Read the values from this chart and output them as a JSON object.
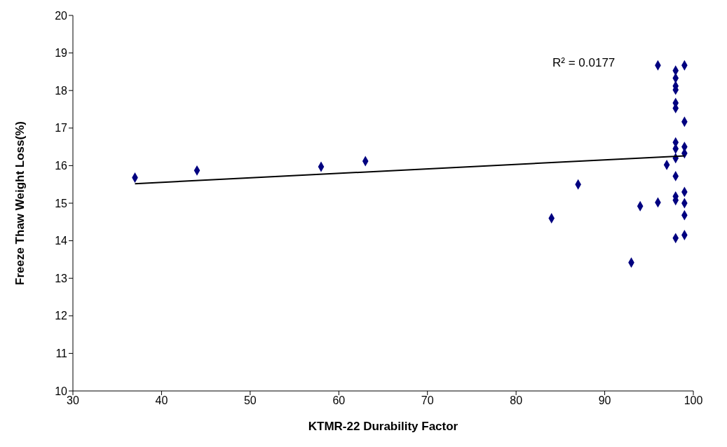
{
  "chart_data": {
    "type": "scatter",
    "xlabel": "KTMR-22 Durability Factor",
    "ylabel": "Freeze Thaw Weight Loss(%)",
    "xlim": [
      30,
      100
    ],
    "xticks": [
      30,
      40,
      50,
      60,
      70,
      80,
      90,
      100
    ],
    "ylim": [
      10,
      20
    ],
    "yticks": [
      10,
      11,
      12,
      13,
      14,
      15,
      16,
      17,
      18,
      19,
      20
    ],
    "marker": "diamond",
    "annotations": [
      "R² = 0.0177"
    ],
    "series": [
      {
        "color": "#000080",
        "x": [
          37,
          44,
          58,
          63,
          84,
          87,
          93,
          94,
          96,
          96,
          97,
          98,
          98,
          98,
          98,
          98,
          98,
          98,
          98,
          98,
          98,
          98,
          98,
          98,
          99,
          99,
          99,
          99,
          99,
          99,
          99,
          99
        ],
        "values": [
          15.68,
          15.87,
          15.97,
          16.12,
          14.6,
          15.5,
          13.42,
          14.92,
          15.02,
          18.67,
          16.02,
          18.53,
          18.33,
          18.12,
          18.02,
          17.67,
          17.53,
          16.62,
          16.45,
          16.2,
          15.72,
          15.18,
          15.08,
          14.07,
          18.67,
          17.17,
          16.5,
          16.33,
          15.3,
          15.0,
          14.68,
          14.15
        ]
      },
      {
        "type": "line",
        "marker": "none",
        "color": "#000000",
        "x": [
          37,
          99
        ],
        "values": [
          15.52,
          16.26
        ]
      }
    ]
  }
}
